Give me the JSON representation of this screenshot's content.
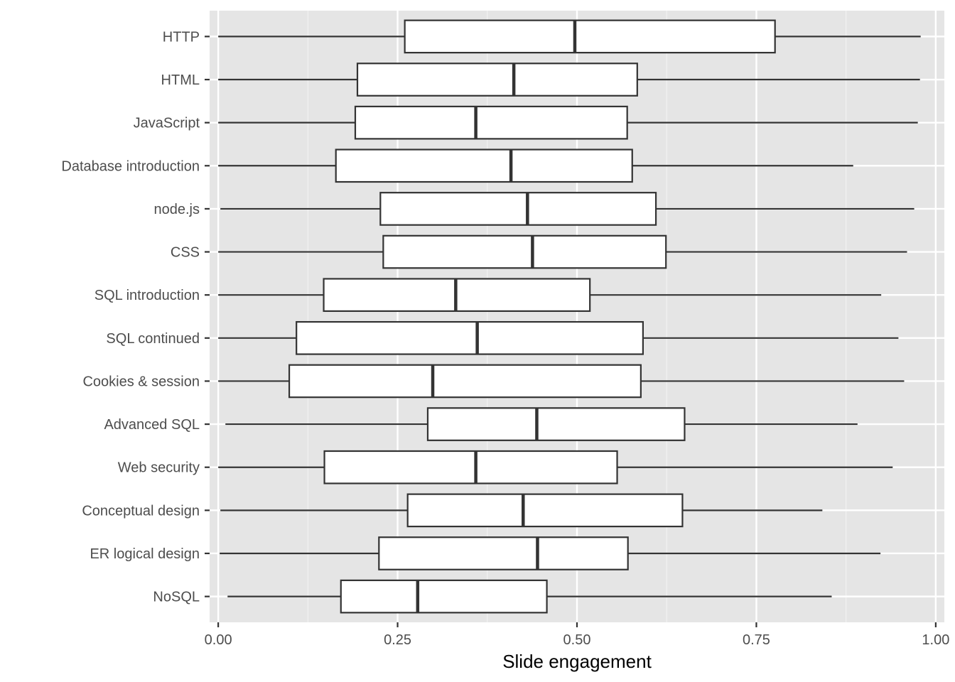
{
  "chart_data": {
    "type": "boxplot",
    "orientation": "horizontal",
    "title": "",
    "xlabel": "Slide engagement",
    "ylabel": "",
    "xlim": [
      -0.012,
      1.012
    ],
    "xticks": [
      0.0,
      0.25,
      0.5,
      0.75,
      1.0
    ],
    "xtick_labels": [
      "0.00",
      "0.25",
      "0.50",
      "0.75",
      "1.00"
    ],
    "categories": [
      "HTTP",
      "HTML",
      "JavaScript",
      "Database introduction",
      "node.js",
      "CSS",
      "SQL introduction",
      "SQL continued",
      "Cookies & session",
      "Advanced SQL",
      "Web security",
      "Conceptual design",
      "ER logical design",
      "NoSQL"
    ],
    "boxes": [
      {
        "label": "HTTP",
        "whisker_low": 0.0,
        "q1": 0.26,
        "median": 0.497,
        "q3": 0.776,
        "whisker_high": 0.979
      },
      {
        "label": "HTML",
        "whisker_low": 0.0,
        "q1": 0.194,
        "median": 0.412,
        "q3": 0.584,
        "whisker_high": 0.978
      },
      {
        "label": "JavaScript",
        "whisker_low": 0.0,
        "q1": 0.191,
        "median": 0.359,
        "q3": 0.57,
        "whisker_high": 0.975
      },
      {
        "label": "Database introduction",
        "whisker_low": 0.0,
        "q1": 0.164,
        "median": 0.408,
        "q3": 0.577,
        "whisker_high": 0.885
      },
      {
        "label": "node.js",
        "whisker_low": 0.003,
        "q1": 0.226,
        "median": 0.431,
        "q3": 0.61,
        "whisker_high": 0.97
      },
      {
        "label": "CSS",
        "whisker_low": 0.0,
        "q1": 0.23,
        "median": 0.438,
        "q3": 0.624,
        "whisker_high": 0.96
      },
      {
        "label": "SQL introduction",
        "whisker_low": 0.0,
        "q1": 0.147,
        "median": 0.331,
        "q3": 0.518,
        "whisker_high": 0.924
      },
      {
        "label": "SQL continued",
        "whisker_low": 0.0,
        "q1": 0.109,
        "median": 0.361,
        "q3": 0.592,
        "whisker_high": 0.948
      },
      {
        "label": "Cookies & session",
        "whisker_low": 0.0,
        "q1": 0.099,
        "median": 0.299,
        "q3": 0.589,
        "whisker_high": 0.956
      },
      {
        "label": "Advanced SQL",
        "whisker_low": 0.01,
        "q1": 0.292,
        "median": 0.444,
        "q3": 0.65,
        "whisker_high": 0.891
      },
      {
        "label": "Web security",
        "whisker_low": 0.0,
        "q1": 0.148,
        "median": 0.359,
        "q3": 0.556,
        "whisker_high": 0.94
      },
      {
        "label": "Conceptual design",
        "whisker_low": 0.003,
        "q1": 0.264,
        "median": 0.425,
        "q3": 0.647,
        "whisker_high": 0.842
      },
      {
        "label": "ER logical design",
        "whisker_low": 0.002,
        "q1": 0.224,
        "median": 0.445,
        "q3": 0.571,
        "whisker_high": 0.923
      },
      {
        "label": "NoSQL",
        "whisker_low": 0.013,
        "q1": 0.171,
        "median": 0.278,
        "q3": 0.458,
        "whisker_high": 0.855
      }
    ],
    "grid": true,
    "legend": "none",
    "colors": {
      "panel_background": "#e5e5e5",
      "grid_major": "#ffffff",
      "grid_minor": "#f2f2f2",
      "box_fill": "#ffffff",
      "box_stroke": "#333333",
      "tick_mark": "#333333"
    }
  }
}
